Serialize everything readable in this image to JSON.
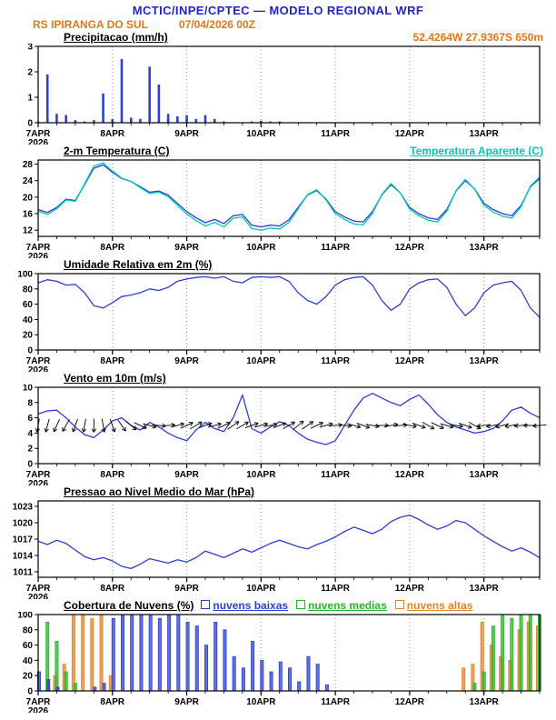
{
  "header": {
    "title": "MCTIC/INPE/CPTEC — MODELO REGIONAL WRF",
    "station": "RS IPIRANGA DO SUL",
    "run": "07/04/2026 00Z",
    "coords": "52.4264W 27.9367S 650m",
    "title_color": "#2323cd",
    "accent_color": "#e07818"
  },
  "time_axis": {
    "hours_total": 162,
    "step_hours": 3,
    "minor_tick_hours": 6,
    "major_ticks": [
      {
        "hour": 0,
        "label": "7APR",
        "sublabel": "2026"
      },
      {
        "hour": 24,
        "label": "8APR"
      },
      {
        "hour": 48,
        "label": "9APR"
      },
      {
        "hour": 72,
        "label": "10APR"
      },
      {
        "hour": 96,
        "label": "11APR"
      },
      {
        "hour": 120,
        "label": "12APR"
      },
      {
        "hour": 144,
        "label": "13APR"
      }
    ]
  },
  "chart_data": [
    {
      "type": "bar",
      "title": "Precipitacao (mm/h)",
      "ylim": [
        0,
        3
      ],
      "yticks": [
        0,
        1,
        2,
        3
      ],
      "color": "#2d3fd3",
      "values": [
        0.05,
        1.9,
        0.35,
        0.3,
        0.1,
        0.05,
        0.1,
        1.15,
        0.15,
        2.5,
        0.2,
        0.15,
        2.2,
        1.5,
        0.35,
        0.25,
        0.3,
        0.15,
        0.3,
        0.15,
        0.05,
        0,
        0,
        0.05,
        0.08,
        0.05,
        0.05,
        0,
        0,
        0,
        0,
        0,
        0,
        0,
        0,
        0,
        0,
        0,
        0,
        0,
        0,
        0,
        0,
        0,
        0,
        0,
        0,
        0,
        0,
        0,
        0,
        0,
        0,
        0,
        0
      ]
    },
    {
      "type": "line",
      "title": "2-m Temperatura (C)",
      "ylim": [
        10.5,
        29
      ],
      "yticks": [
        12,
        16,
        20,
        24,
        28
      ],
      "series": [
        {
          "name": "2-m Temperatura (C)",
          "color": "#2d3fd3",
          "values": [
            17.0,
            16.3,
            17.5,
            19.5,
            19.2,
            23.0,
            27.0,
            27.8,
            26.0,
            24.5,
            23.8,
            22.5,
            21.2,
            21.5,
            20.5,
            18.5,
            16.5,
            15.0,
            13.8,
            14.6,
            13.6,
            15.5,
            15.8,
            13.2,
            12.8,
            13.2,
            13.0,
            14.5,
            17.5,
            20.5,
            21.6,
            19.5,
            16.5,
            15.2,
            14.2,
            14.0,
            16.5,
            20.5,
            23.0,
            21.0,
            17.5,
            16.0,
            15.0,
            14.6,
            17.0,
            21.5,
            24.0,
            22.0,
            18.5,
            17.0,
            16.0,
            15.5,
            18.0,
            22.5,
            24.5
          ]
        },
        {
          "name": "Temperatura Aparente (C)",
          "color": "#00c8b4",
          "values": [
            16.6,
            15.8,
            17.2,
            19.3,
            19.0,
            23.2,
            27.5,
            28.3,
            26.3,
            24.6,
            23.8,
            22.3,
            20.9,
            21.2,
            20.1,
            18.0,
            15.9,
            14.3,
            13.0,
            13.9,
            12.8,
            14.9,
            15.2,
            12.4,
            12.0,
            12.5,
            12.3,
            13.9,
            17.2,
            20.6,
            21.8,
            19.3,
            16.0,
            14.6,
            13.5,
            13.3,
            16.1,
            20.6,
            23.3,
            21.0,
            17.1,
            15.5,
            14.4,
            14.0,
            16.6,
            21.6,
            24.3,
            21.9,
            18.0,
            16.4,
            15.4,
            14.9,
            17.7,
            22.7,
            24.9
          ]
        }
      ]
    },
    {
      "type": "line",
      "title": "Umidade Relativa em 2m (%)",
      "ylim": [
        0,
        100
      ],
      "yticks": [
        0,
        20,
        40,
        60,
        80,
        100
      ],
      "series": [
        {
          "name": "Umidade Relativa",
          "color": "#2d3fd3",
          "values": [
            88,
            92,
            90,
            85,
            86,
            75,
            58,
            55,
            62,
            70,
            72,
            75,
            80,
            78,
            82,
            90,
            93,
            95,
            96,
            94,
            96,
            90,
            88,
            95,
            96,
            95,
            96,
            90,
            75,
            65,
            60,
            70,
            85,
            92,
            95,
            96,
            85,
            65,
            52,
            60,
            80,
            88,
            92,
            93,
            82,
            60,
            45,
            55,
            75,
            85,
            88,
            90,
            78,
            55,
            43
          ]
        }
      ]
    },
    {
      "type": "wind",
      "title": "Vento em 10m (m/s)",
      "ylim": [
        0,
        10
      ],
      "yticks": [
        0,
        2,
        4,
        6,
        8,
        10
      ],
      "arrow_anchor_value": 5,
      "series": [
        {
          "name": "Vento 10m",
          "color": "#2d3fd3",
          "values": [
            6.5,
            6.9,
            7.0,
            6.0,
            4.8,
            3.8,
            3.4,
            4.4,
            5.6,
            6.0,
            5.0,
            4.4,
            5.4,
            4.8,
            4.0,
            3.4,
            3.0,
            4.4,
            5.4,
            4.6,
            4.2,
            6.0,
            9.0,
            4.6,
            4.0,
            4.8,
            5.5,
            5.0,
            4.0,
            3.2,
            2.8,
            2.5,
            3.0,
            5.0,
            7.0,
            8.6,
            9.2,
            8.6,
            8.0,
            7.6,
            8.4,
            9.0,
            7.8,
            6.4,
            5.4,
            4.8,
            4.4,
            4.0,
            4.2,
            4.6,
            5.6,
            7.0,
            7.4,
            6.6,
            6.0
          ]
        }
      ],
      "directions_deg": [
        -100,
        -105,
        -115,
        -120,
        -110,
        -100,
        -90,
        -80,
        -70,
        -55,
        -40,
        -25,
        -15,
        -5,
        5,
        15,
        25,
        30,
        20,
        15,
        25,
        35,
        30,
        20,
        15,
        10,
        20,
        30,
        40,
        35,
        25,
        15,
        5,
        -5,
        -15,
        -20,
        -10,
        0,
        10,
        5,
        -10,
        -20,
        -30,
        -25,
        -15,
        -10,
        -20,
        -30,
        185,
        190,
        195,
        190,
        185,
        180,
        185
      ]
    },
    {
      "type": "line",
      "title": "Pressao ao Nivel Medio do Mar (hPa)",
      "ylim": [
        1010,
        1024
      ],
      "yticks": [
        1011,
        1014,
        1017,
        1020,
        1023
      ],
      "series": [
        {
          "name": "Pressao",
          "color": "#2d3fd3",
          "values": [
            1016.6,
            1016.0,
            1016.8,
            1016.2,
            1015.0,
            1013.8,
            1013.2,
            1013.6,
            1013.0,
            1012.0,
            1011.6,
            1012.4,
            1013.4,
            1013.0,
            1012.6,
            1013.2,
            1012.8,
            1013.6,
            1014.8,
            1014.2,
            1013.6,
            1014.4,
            1015.2,
            1014.6,
            1015.4,
            1016.2,
            1016.8,
            1016.2,
            1015.6,
            1015.2,
            1016.0,
            1016.6,
            1017.4,
            1018.4,
            1019.2,
            1018.6,
            1018.0,
            1018.8,
            1020.2,
            1021.0,
            1021.4,
            1020.6,
            1019.6,
            1018.8,
            1019.4,
            1020.4,
            1020.0,
            1018.8,
            1017.6,
            1016.6,
            1015.6,
            1014.8,
            1015.4,
            1014.6,
            1013.6
          ]
        }
      ]
    },
    {
      "type": "cloud",
      "title": "Cobertura de Nuvens (%)",
      "ylim": [
        0,
        100
      ],
      "yticks": [
        0,
        20,
        40,
        60,
        80,
        100
      ],
      "series": [
        {
          "name": "nuvens baixas",
          "color": "#2d3fd3",
          "values": [
            25,
            15,
            5,
            0,
            0,
            0,
            5,
            10,
            95,
            100,
            100,
            100,
            100,
            95,
            100,
            100,
            90,
            85,
            60,
            90,
            80,
            45,
            30,
            65,
            40,
            25,
            38,
            30,
            12,
            45,
            35,
            8,
            0,
            0,
            0,
            0,
            0,
            0,
            0,
            0,
            0,
            0,
            0,
            0,
            0,
            0,
            0,
            0,
            0,
            0,
            0,
            0,
            0,
            0,
            0
          ]
        },
        {
          "name": "nuvens medias",
          "color": "#28b428",
          "values": [
            0,
            90,
            65,
            25,
            10,
            0,
            0,
            0,
            0,
            0,
            0,
            0,
            0,
            0,
            0,
            0,
            0,
            0,
            0,
            0,
            0,
            0,
            0,
            0,
            0,
            0,
            0,
            0,
            0,
            0,
            0,
            0,
            0,
            0,
            0,
            0,
            0,
            0,
            0,
            0,
            0,
            0,
            0,
            0,
            0,
            0,
            0,
            10,
            25,
            85,
            100,
            95,
            100,
            100,
            100
          ]
        },
        {
          "name": "nuvens altas",
          "color": "#e08428",
          "values": [
            0,
            0,
            20,
            35,
            100,
            100,
            95,
            100,
            20,
            0,
            0,
            0,
            0,
            0,
            0,
            0,
            0,
            0,
            0,
            0,
            0,
            0,
            0,
            0,
            0,
            0,
            0,
            0,
            0,
            0,
            0,
            0,
            0,
            0,
            0,
            0,
            0,
            0,
            0,
            0,
            0,
            0,
            0,
            0,
            0,
            0,
            30,
            35,
            90,
            60,
            45,
            40,
            80,
            90,
            85
          ]
        }
      ]
    }
  ]
}
